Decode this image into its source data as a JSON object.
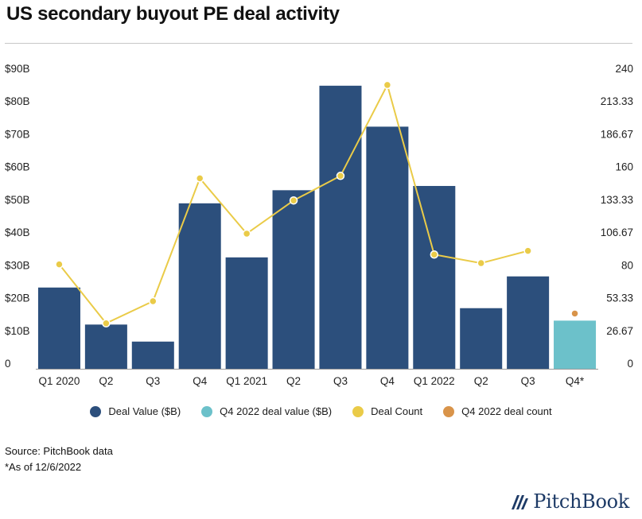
{
  "title": "US secondary buyout PE deal activity",
  "source": "Source: PitchBook data",
  "footnote": "*As of 12/6/2022",
  "brand": "PitchBook",
  "colors": {
    "deal_value": "#2c4f7c",
    "q4_2022_value": "#6cc1ca",
    "deal_count": "#eacb48",
    "q4_2022_count": "#d9944a"
  },
  "legend": [
    {
      "label": "Deal Value ($B)",
      "color": "#2c4f7c"
    },
    {
      "label": "Q4 2022 deal value ($B)",
      "color": "#6cc1ca"
    },
    {
      "label": "Deal Count",
      "color": "#eacb48"
    },
    {
      "label": "Q4 2022 deal count",
      "color": "#d9944a"
    }
  ],
  "chart_data": {
    "type": "bar",
    "categories": [
      "Q1 2020",
      "Q2",
      "Q3",
      "Q4",
      "Q1 2021",
      "Q2",
      "Q3",
      "Q4",
      "Q1 2022",
      "Q2",
      "Q3",
      "Q4*"
    ],
    "series": [
      {
        "name": "Deal Value ($B)",
        "type": "bar",
        "axis": "left",
        "values": [
          24.8,
          13.5,
          8.3,
          50.5,
          34.0,
          54.5,
          86.4,
          73.9,
          55.8,
          18.5,
          28.2,
          null
        ]
      },
      {
        "name": "Q4 2022 deal value ($B)",
        "type": "bar",
        "axis": "left",
        "values": [
          null,
          null,
          null,
          null,
          null,
          null,
          null,
          null,
          null,
          null,
          null,
          14.7
        ]
      },
      {
        "name": "Deal Count",
        "type": "line",
        "axis": "right",
        "values": [
          85,
          37,
          55,
          155,
          110,
          137,
          157,
          231,
          93,
          86,
          96,
          null
        ]
      },
      {
        "name": "Q4 2022 deal count",
        "type": "scatter",
        "axis": "right",
        "values": [
          null,
          null,
          null,
          null,
          null,
          null,
          null,
          null,
          null,
          null,
          null,
          45
        ]
      }
    ],
    "y_left": {
      "ylim": [
        0,
        90
      ],
      "ticks": [
        "0",
        "$10B",
        "$20B",
        "$30B",
        "$40B",
        "$50B",
        "$60B",
        "$70B",
        "$80B",
        "$90B"
      ]
    },
    "y_right": {
      "ylim": [
        0,
        240
      ],
      "ticks": [
        "0",
        "26.67",
        "53.33",
        "80",
        "106.67",
        "133.33",
        "160",
        "186.67",
        "213.33",
        "240"
      ]
    },
    "grid": false,
    "legend_position": "bottom"
  }
}
